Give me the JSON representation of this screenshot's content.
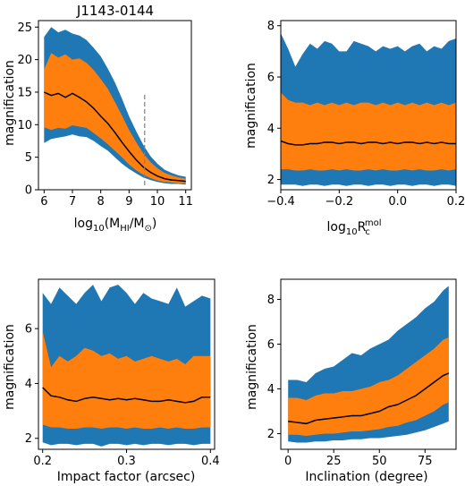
{
  "colors": {
    "outer_band": "#1f77b4",
    "inner_band": "#ff7f0e",
    "median": "#000000",
    "marker": "#808080"
  },
  "chart_data": [
    {
      "type": "area",
      "title": "J1143-0144",
      "xlabel": "log10(MHI/M⊙)",
      "ylabel": "magnification",
      "xlim": [
        5.8,
        11.2
      ],
      "ylim": [
        0,
        26
      ],
      "xticks": [
        6,
        7,
        8,
        9,
        10,
        11
      ],
      "yticks": [
        0,
        5,
        10,
        15,
        20,
        25
      ],
      "x": [
        6.0,
        6.25,
        6.5,
        6.75,
        7.0,
        7.25,
        7.5,
        7.75,
        8.0,
        8.25,
        8.5,
        8.75,
        9.0,
        9.25,
        9.5,
        9.75,
        10.0,
        10.25,
        10.5,
        10.75,
        11.0
      ],
      "outer_upper": [
        23.5,
        25.0,
        24.2,
        24.6,
        24.0,
        23.7,
        23.0,
        21.8,
        20.5,
        18.6,
        16.5,
        14.0,
        11.3,
        9.0,
        6.9,
        5.2,
        4.0,
        3.1,
        2.6,
        2.2,
        2.0
      ],
      "inner_upper": [
        18.5,
        21.0,
        20.3,
        20.8,
        20.0,
        20.2,
        19.5,
        18.4,
        17.0,
        15.5,
        13.5,
        11.4,
        9.2,
        7.3,
        5.6,
        4.3,
        3.3,
        2.6,
        2.2,
        1.9,
        1.7
      ],
      "median": [
        15.0,
        14.5,
        14.8,
        14.2,
        14.8,
        14.2,
        13.5,
        12.5,
        11.3,
        10.2,
        8.8,
        7.3,
        5.9,
        4.6,
        3.5,
        2.7,
        2.1,
        1.7,
        1.5,
        1.4,
        1.3
      ],
      "inner_lower": [
        9.6,
        9.2,
        9.5,
        9.4,
        9.9,
        9.7,
        9.5,
        8.7,
        7.9,
        7.0,
        6.0,
        5.0,
        3.9,
        3.0,
        2.3,
        1.8,
        1.4,
        1.2,
        1.1,
        1.0,
        1.0
      ],
      "outer_lower": [
        7.2,
        7.8,
        8.0,
        8.2,
        8.5,
        8.2,
        8.1,
        7.5,
        6.7,
        6.0,
        5.0,
        4.0,
        3.2,
        2.5,
        1.9,
        1.5,
        1.2,
        1.0,
        0.9,
        0.9,
        0.8
      ],
      "vline": {
        "x": 9.55,
        "y": [
          0.7,
          15.0
        ]
      }
    },
    {
      "type": "area",
      "xlabel": "log10Rcmol",
      "ylabel": "magnification",
      "xlim": [
        -0.4,
        0.2
      ],
      "ylim": [
        1.6,
        8.2
      ],
      "xticks": [
        -0.4,
        -0.2,
        0.0,
        0.2
      ],
      "xtick_labels": [
        "−0.4",
        "−0.2",
        "0.0",
        "0.2"
      ],
      "yticks": [
        2,
        4,
        6,
        8
      ],
      "x": [
        -0.4,
        -0.375,
        -0.35,
        -0.325,
        -0.3,
        -0.275,
        -0.25,
        -0.225,
        -0.2,
        -0.175,
        -0.15,
        -0.125,
        -0.1,
        -0.075,
        -0.05,
        -0.025,
        0.0,
        0.025,
        0.05,
        0.075,
        0.1,
        0.125,
        0.15,
        0.175,
        0.2
      ],
      "outer_upper": [
        7.7,
        7.1,
        6.4,
        6.9,
        7.3,
        7.1,
        7.4,
        7.3,
        7.0,
        7.0,
        7.4,
        7.3,
        7.2,
        7.0,
        7.2,
        7.1,
        7.2,
        7.0,
        7.2,
        7.3,
        7.0,
        7.2,
        7.1,
        7.4,
        7.5
      ],
      "inner_upper": [
        5.4,
        5.1,
        5.0,
        5.0,
        4.9,
        5.0,
        4.9,
        5.0,
        4.9,
        5.0,
        4.9,
        5.0,
        5.0,
        4.9,
        5.0,
        4.9,
        5.0,
        4.9,
        5.0,
        4.9,
        5.0,
        4.9,
        5.0,
        4.9,
        5.0
      ],
      "median": [
        3.5,
        3.4,
        3.35,
        3.35,
        3.4,
        3.4,
        3.45,
        3.45,
        3.4,
        3.45,
        3.45,
        3.4,
        3.45,
        3.45,
        3.4,
        3.45,
        3.4,
        3.45,
        3.45,
        3.4,
        3.45,
        3.4,
        3.45,
        3.4,
        3.4
      ],
      "inner_lower": [
        2.4,
        2.4,
        2.35,
        2.35,
        2.4,
        2.35,
        2.35,
        2.4,
        2.35,
        2.4,
        2.35,
        2.35,
        2.4,
        2.35,
        2.4,
        2.35,
        2.35,
        2.4,
        2.35,
        2.4,
        2.35,
        2.35,
        2.4,
        2.35,
        2.4
      ],
      "outer_lower": [
        1.8,
        1.8,
        1.8,
        1.75,
        1.8,
        1.8,
        1.75,
        1.8,
        1.8,
        1.75,
        1.8,
        1.8,
        1.75,
        1.8,
        1.8,
        1.75,
        1.8,
        1.8,
        1.75,
        1.8,
        1.8,
        1.75,
        1.8,
        1.8,
        1.75
      ]
    },
    {
      "type": "area",
      "xlabel": "Impact factor (arcsec)",
      "ylabel": "magnification",
      "xlim": [
        0.195,
        0.405
      ],
      "ylim": [
        1.6,
        7.8
      ],
      "xticks": [
        0.2,
        0.3,
        0.4
      ],
      "yticks": [
        2,
        4,
        6
      ],
      "x": [
        0.2,
        0.21,
        0.22,
        0.23,
        0.24,
        0.25,
        0.26,
        0.27,
        0.28,
        0.29,
        0.3,
        0.31,
        0.32,
        0.33,
        0.34,
        0.35,
        0.36,
        0.37,
        0.38,
        0.39,
        0.4
      ],
      "outer_upper": [
        7.3,
        6.9,
        7.5,
        7.2,
        6.9,
        7.3,
        7.6,
        7.0,
        7.5,
        7.6,
        7.3,
        6.9,
        7.3,
        7.1,
        7.0,
        6.9,
        7.5,
        6.8,
        7.0,
        7.2,
        7.1
      ],
      "inner_upper": [
        5.9,
        4.6,
        5.0,
        4.8,
        5.0,
        5.3,
        5.2,
        5.0,
        5.1,
        4.9,
        5.0,
        4.8,
        4.9,
        5.0,
        4.9,
        4.8,
        4.9,
        4.7,
        5.0,
        5.0,
        5.0
      ],
      "median": [
        3.85,
        3.55,
        3.5,
        3.4,
        3.35,
        3.45,
        3.5,
        3.45,
        3.4,
        3.45,
        3.4,
        3.45,
        3.4,
        3.35,
        3.35,
        3.4,
        3.35,
        3.3,
        3.35,
        3.5,
        3.5
      ],
      "inner_lower": [
        2.5,
        2.4,
        2.4,
        2.35,
        2.35,
        2.4,
        2.4,
        2.35,
        2.4,
        2.4,
        2.35,
        2.4,
        2.35,
        2.35,
        2.4,
        2.35,
        2.4,
        2.35,
        2.35,
        2.4,
        2.4
      ],
      "outer_lower": [
        1.85,
        1.75,
        1.8,
        1.8,
        1.75,
        1.8,
        1.8,
        1.7,
        1.8,
        1.8,
        1.75,
        1.8,
        1.75,
        1.8,
        1.8,
        1.75,
        1.8,
        1.8,
        1.75,
        1.8,
        1.8
      ]
    },
    {
      "type": "area",
      "xlabel": "Inclination (degree)",
      "ylabel": "magnification",
      "xlim": [
        -4,
        92
      ],
      "ylim": [
        1.3,
        8.9
      ],
      "xticks": [
        0,
        25,
        50,
        75
      ],
      "yticks": [
        2,
        4,
        6,
        8
      ],
      "x": [
        0,
        5,
        10,
        15,
        20,
        25,
        30,
        35,
        40,
        45,
        50,
        55,
        60,
        65,
        70,
        75,
        80,
        85,
        88
      ],
      "outer_upper": [
        4.4,
        4.4,
        4.3,
        4.7,
        4.9,
        5.0,
        5.3,
        5.6,
        5.5,
        5.8,
        6.0,
        6.2,
        6.6,
        6.9,
        7.2,
        7.6,
        7.9,
        8.4,
        8.6
      ],
      "inner_upper": [
        3.6,
        3.6,
        3.5,
        3.7,
        3.8,
        3.8,
        3.9,
        3.9,
        4.0,
        4.1,
        4.3,
        4.4,
        4.6,
        4.9,
        5.2,
        5.5,
        5.8,
        6.2,
        6.3
      ],
      "median": [
        2.55,
        2.5,
        2.45,
        2.6,
        2.65,
        2.7,
        2.75,
        2.8,
        2.8,
        2.9,
        3.0,
        3.2,
        3.3,
        3.5,
        3.7,
        4.0,
        4.3,
        4.6,
        4.7
      ],
      "inner_lower": [
        1.95,
        1.95,
        1.9,
        1.95,
        2.0,
        2.0,
        2.05,
        2.1,
        2.1,
        2.15,
        2.2,
        2.3,
        2.35,
        2.5,
        2.6,
        2.8,
        3.0,
        3.3,
        3.4
      ],
      "outer_lower": [
        1.65,
        1.6,
        1.6,
        1.65,
        1.65,
        1.7,
        1.7,
        1.75,
        1.75,
        1.8,
        1.8,
        1.85,
        1.9,
        1.95,
        2.05,
        2.15,
        2.3,
        2.45,
        2.55
      ]
    }
  ]
}
